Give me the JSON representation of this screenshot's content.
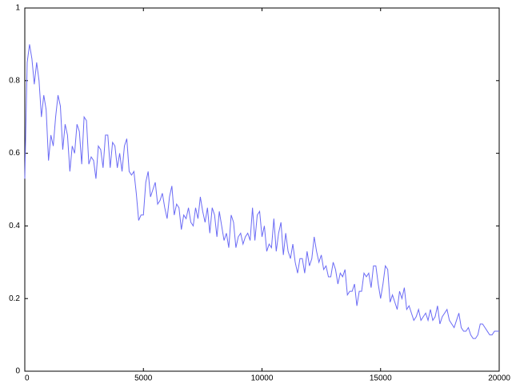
{
  "chart_data": {
    "type": "line",
    "x": [
      0,
      100,
      200,
      300,
      400,
      500,
      600,
      700,
      800,
      900,
      1000,
      1100,
      1200,
      1300,
      1400,
      1500,
      1600,
      1700,
      1800,
      1900,
      2000,
      2100,
      2200,
      2300,
      2400,
      2500,
      2600,
      2700,
      2800,
      2900,
      3000,
      3100,
      3200,
      3300,
      3400,
      3500,
      3600,
      3700,
      3800,
      3900,
      4000,
      4100,
      4200,
      4300,
      4400,
      4500,
      4600,
      4700,
      4800,
      4900,
      5000,
      5100,
      5200,
      5300,
      5400,
      5500,
      5600,
      5700,
      5800,
      5900,
      6000,
      6100,
      6200,
      6300,
      6400,
      6500,
      6600,
      6700,
      6800,
      6900,
      7000,
      7100,
      7200,
      7300,
      7400,
      7500,
      7600,
      7700,
      7800,
      7900,
      8000,
      8100,
      8200,
      8300,
      8400,
      8500,
      8600,
      8700,
      8800,
      8900,
      9000,
      9100,
      9200,
      9300,
      9400,
      9500,
      9600,
      9700,
      9800,
      9900,
      10000,
      10100,
      10200,
      10300,
      10400,
      10500,
      10600,
      10700,
      10800,
      10900,
      11000,
      11100,
      11200,
      11300,
      11400,
      11500,
      11600,
      11700,
      11800,
      11900,
      12000,
      12100,
      12200,
      12300,
      12400,
      12500,
      12600,
      12700,
      12800,
      12900,
      13000,
      13100,
      13200,
      13300,
      13400,
      13500,
      13600,
      13700,
      13800,
      13900,
      14000,
      14100,
      14200,
      14300,
      14400,
      14500,
      14600,
      14700,
      14800,
      14900,
      15000,
      15100,
      15200,
      15300,
      15400,
      15500,
      15600,
      15700,
      15800,
      15900,
      16000,
      16100,
      16200,
      16300,
      16400,
      16500,
      16600,
      16700,
      16800,
      16900,
      17000,
      17100,
      17200,
      17300,
      17400,
      17500,
      17600,
      17700,
      17800,
      17900,
      18000,
      18100,
      18200,
      18300,
      18400,
      18500,
      18600,
      18700,
      18800,
      18900,
      19000,
      19100,
      19200,
      19300,
      19400,
      19500,
      19600,
      19700,
      19800,
      19900,
      20000
    ],
    "series": [
      {
        "color": "#6b6bf5",
        "values": [
          0.53,
          0.85,
          0.9,
          0.86,
          0.79,
          0.85,
          0.8,
          0.7,
          0.76,
          0.72,
          0.58,
          0.65,
          0.62,
          0.7,
          0.76,
          0.73,
          0.61,
          0.68,
          0.65,
          0.55,
          0.62,
          0.6,
          0.68,
          0.66,
          0.57,
          0.7,
          0.69,
          0.57,
          0.59,
          0.58,
          0.53,
          0.62,
          0.61,
          0.56,
          0.65,
          0.65,
          0.56,
          0.63,
          0.62,
          0.56,
          0.6,
          0.55,
          0.62,
          0.64,
          0.55,
          0.54,
          0.55,
          0.49,
          0.415,
          0.43,
          0.43,
          0.52,
          0.55,
          0.48,
          0.5,
          0.52,
          0.46,
          0.47,
          0.49,
          0.45,
          0.42,
          0.48,
          0.51,
          0.43,
          0.46,
          0.45,
          0.39,
          0.43,
          0.42,
          0.45,
          0.41,
          0.4,
          0.45,
          0.42,
          0.48,
          0.44,
          0.41,
          0.45,
          0.38,
          0.45,
          0.43,
          0.37,
          0.44,
          0.4,
          0.36,
          0.38,
          0.34,
          0.43,
          0.41,
          0.34,
          0.37,
          0.38,
          0.35,
          0.37,
          0.38,
          0.36,
          0.45,
          0.36,
          0.43,
          0.44,
          0.37,
          0.4,
          0.33,
          0.35,
          0.34,
          0.42,
          0.33,
          0.38,
          0.41,
          0.32,
          0.38,
          0.33,
          0.31,
          0.35,
          0.3,
          0.27,
          0.31,
          0.31,
          0.27,
          0.33,
          0.29,
          0.31,
          0.37,
          0.33,
          0.3,
          0.32,
          0.28,
          0.29,
          0.26,
          0.26,
          0.3,
          0.28,
          0.24,
          0.27,
          0.26,
          0.28,
          0.21,
          0.22,
          0.22,
          0.24,
          0.18,
          0.22,
          0.22,
          0.27,
          0.26,
          0.27,
          0.23,
          0.29,
          0.29,
          0.24,
          0.2,
          0.24,
          0.29,
          0.28,
          0.19,
          0.21,
          0.19,
          0.17,
          0.22,
          0.2,
          0.23,
          0.17,
          0.18,
          0.16,
          0.14,
          0.15,
          0.17,
          0.14,
          0.15,
          0.16,
          0.14,
          0.17,
          0.14,
          0.15,
          0.18,
          0.13,
          0.15,
          0.16,
          0.17,
          0.14,
          0.13,
          0.12,
          0.14,
          0.16,
          0.12,
          0.11,
          0.11,
          0.12,
          0.1,
          0.09,
          0.09,
          0.1,
          0.13,
          0.13,
          0.12,
          0.11,
          0.1,
          0.1,
          0.11,
          0.11,
          0.11
        ]
      }
    ],
    "xlim": [
      0,
      20000
    ],
    "xticks": [
      0,
      5000,
      10000,
      15000,
      20000
    ],
    "ylim": [
      0,
      1
    ],
    "yticks": [
      0,
      0.2,
      0.4,
      0.6,
      0.8,
      1
    ]
  }
}
